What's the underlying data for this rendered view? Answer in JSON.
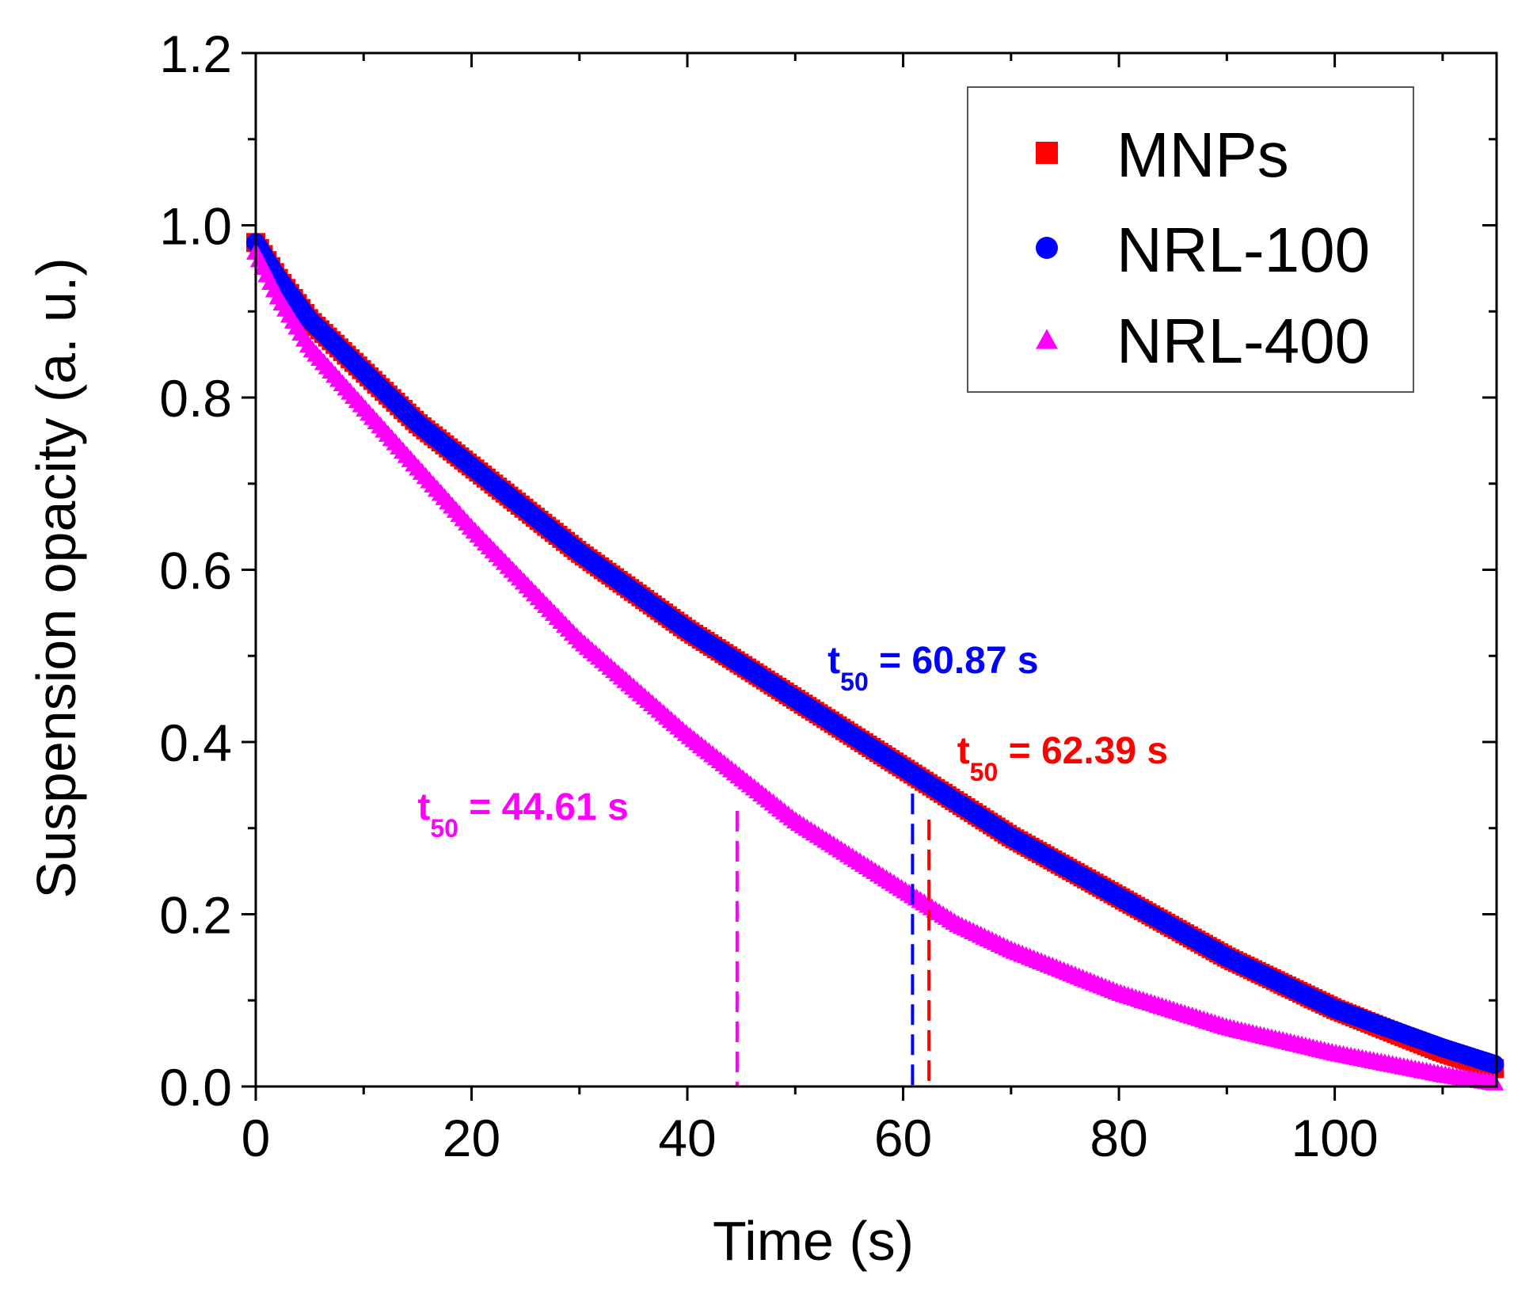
{
  "chart_data": {
    "type": "scatter",
    "xlabel": "Time (s)",
    "ylabel": "Suspension opacity (a. u.)",
    "xlim": [
      0,
      115
    ],
    "ylim": [
      0.0,
      1.2
    ],
    "x_ticks": [
      0,
      20,
      40,
      60,
      80,
      100
    ],
    "x_tick_labels": [
      "0",
      "20",
      "40",
      "60",
      "80",
      "100"
    ],
    "y_ticks": [
      0.0,
      0.2,
      0.4,
      0.6,
      0.8,
      1.0,
      1.2
    ],
    "y_tick_labels": [
      "0.0",
      "0.2",
      "0.4",
      "0.6",
      "0.8",
      "1.0",
      "1.2"
    ],
    "legend_position": "top-right",
    "series": [
      {
        "name": "MNPs",
        "marker": "square",
        "color": "#ff0000",
        "x": [
          0,
          2,
          5,
          10,
          15,
          20,
          30,
          40,
          45,
          50,
          55,
          60,
          65,
          70,
          80,
          90,
          100,
          110,
          115
        ],
        "y": [
          0.98,
          0.94,
          0.89,
          0.83,
          0.77,
          0.72,
          0.62,
          0.53,
          0.49,
          0.45,
          0.41,
          0.37,
          0.33,
          0.29,
          0.22,
          0.15,
          0.09,
          0.04,
          0.02
        ]
      },
      {
        "name": "NRL-100",
        "marker": "circle",
        "color": "#0000ff",
        "x": [
          0,
          2,
          5,
          10,
          15,
          20,
          30,
          40,
          45,
          50,
          55,
          60,
          65,
          70,
          80,
          90,
          100,
          110,
          115
        ],
        "y": [
          0.98,
          0.94,
          0.89,
          0.83,
          0.77,
          0.72,
          0.62,
          0.53,
          0.49,
          0.45,
          0.41,
          0.37,
          0.33,
          0.29,
          0.22,
          0.15,
          0.09,
          0.045,
          0.025
        ]
      },
      {
        "name": "NRL-400",
        "marker": "triangle",
        "color": "#ff00ff",
        "x": [
          0,
          2,
          5,
          10,
          15,
          20,
          30,
          40,
          45,
          50,
          55,
          60,
          65,
          70,
          80,
          90,
          100,
          110,
          115
        ],
        "y": [
          0.97,
          0.92,
          0.86,
          0.79,
          0.72,
          0.65,
          0.52,
          0.41,
          0.36,
          0.31,
          0.27,
          0.23,
          0.19,
          0.16,
          0.11,
          0.07,
          0.04,
          0.015,
          0.005
        ]
      }
    ],
    "reference_lines": [
      {
        "x": 44.61,
        "y_top": 0.32,
        "color": "#ff00ff"
      },
      {
        "x": 60.87,
        "y_top": 0.34,
        "color": "#0000ff"
      },
      {
        "x": 62.39,
        "y_top": 0.31,
        "color": "#ff0000"
      }
    ],
    "annotations": [
      {
        "prefix": "t",
        "sub": "50",
        "text": " = 60.87 s",
        "color": "#0000ff",
        "x": 53,
        "y": 0.48
      },
      {
        "prefix": "t",
        "sub": "50",
        "text": " = 62.39 s",
        "color": "#ff0000",
        "x": 65,
        "y": 0.375
      },
      {
        "prefix": "t",
        "sub": "50",
        "text": " = 44.61 s",
        "color": "#ff00ff",
        "x": 15,
        "y": 0.31
      }
    ]
  }
}
